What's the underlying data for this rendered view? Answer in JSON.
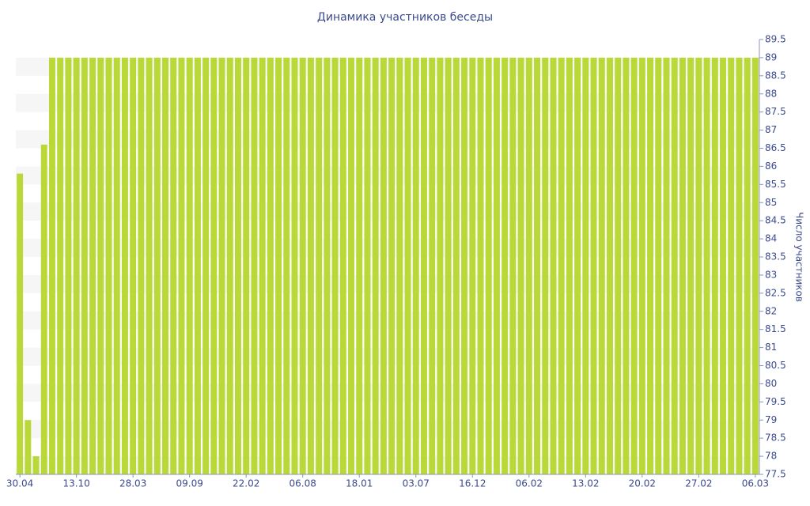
{
  "chart_data": {
    "type": "bar",
    "title": "Динамика участников беседы",
    "y_axis_label": "Число участников",
    "y_axis_side": "right",
    "categories": [
      "30.04",
      null,
      null,
      null,
      null,
      null,
      null,
      "13.10",
      null,
      null,
      null,
      null,
      null,
      null,
      "28.03",
      null,
      null,
      null,
      null,
      null,
      null,
      "09.09",
      null,
      null,
      null,
      null,
      null,
      null,
      "22.02",
      null,
      null,
      null,
      null,
      null,
      null,
      "06.08",
      null,
      null,
      null,
      null,
      null,
      null,
      "18.01",
      null,
      null,
      null,
      null,
      null,
      null,
      "03.07",
      null,
      null,
      null,
      null,
      null,
      null,
      "16.12",
      null,
      null,
      null,
      null,
      null,
      null,
      "06.02",
      null,
      null,
      null,
      null,
      null,
      null,
      "13.02",
      null,
      null,
      null,
      null,
      null,
      null,
      "20.02",
      null,
      null,
      null,
      null,
      null,
      null,
      "27.02",
      null,
      null,
      null,
      null,
      null,
      null,
      "06.03"
    ],
    "values": [
      85.8,
      79,
      78,
      86.6,
      89,
      89,
      89,
      89,
      89,
      89,
      89,
      89,
      89,
      89,
      89,
      89,
      89,
      89,
      89,
      89,
      89,
      89,
      89,
      89,
      89,
      89,
      89,
      89,
      89,
      89,
      89,
      89,
      89,
      89,
      89,
      89,
      89,
      89,
      89,
      89,
      89,
      89,
      89,
      89,
      89,
      89,
      89,
      89,
      89,
      89,
      89,
      89,
      89,
      89,
      89,
      89,
      89,
      89,
      89,
      89,
      89,
      89,
      89,
      89,
      89,
      89,
      89,
      89,
      89,
      89,
      89,
      89,
      89,
      89,
      89,
      89,
      89,
      89,
      89,
      89,
      89,
      89,
      89,
      89,
      89,
      89,
      89,
      89,
      89,
      89,
      89,
      89
    ],
    "color": "#bad938",
    "ylim": [
      77.5,
      89.5
    ],
    "yticks": [
      77.5,
      78,
      78.5,
      79,
      79.5,
      80,
      80.5,
      81,
      81.5,
      82,
      82.5,
      83,
      83.5,
      84,
      84.5,
      85,
      85.5,
      86,
      86.5,
      87,
      87.5,
      88,
      88.5,
      89,
      89.5
    ],
    "grid": true
  }
}
